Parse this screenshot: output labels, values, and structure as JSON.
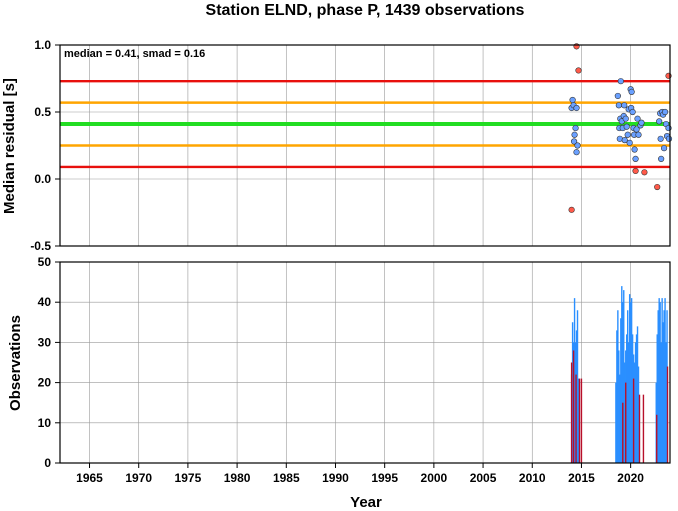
{
  "chart_data": [
    {
      "type": "scatter",
      "title": "Station ELND, phase P, 1439 observations",
      "ylabel": "Median residual [s]",
      "xlim": [
        1962,
        2024
      ],
      "ylim": [
        -0.5,
        1.0
      ],
      "yticks": [
        "1.0",
        "0.5",
        "0.0",
        "-0.5"
      ],
      "grid": true,
      "annotation": "median = 0.41, smad = 0.16",
      "reference_lines": [
        {
          "y": 0.73,
          "color": "#e8100d"
        },
        {
          "y": 0.57,
          "color": "#ffa500"
        },
        {
          "y": 0.41,
          "color": "#22dd22"
        },
        {
          "y": 0.25,
          "color": "#ffa500"
        },
        {
          "y": 0.09,
          "color": "#e8100d"
        }
      ],
      "series": [
        {
          "color": "#6aa0ff",
          "points": [
            [
              2014.0,
              0.53
            ],
            [
              2014.1,
              0.59
            ],
            [
              2014.2,
              0.55
            ],
            [
              2014.25,
              0.28
            ],
            [
              2014.3,
              0.33
            ],
            [
              2014.4,
              0.38
            ],
            [
              2014.5,
              0.53
            ],
            [
              2014.5,
              0.2
            ],
            [
              2014.6,
              0.25
            ],
            [
              2018.7,
              0.62
            ],
            [
              2018.8,
              0.55
            ],
            [
              2018.85,
              0.38
            ],
            [
              2018.9,
              0.3
            ],
            [
              2018.95,
              0.45
            ],
            [
              2019.0,
              0.73
            ],
            [
              2019.1,
              0.43
            ],
            [
              2019.2,
              0.38
            ],
            [
              2019.3,
              0.47
            ],
            [
              2019.35,
              0.55
            ],
            [
              2019.4,
              0.29
            ],
            [
              2019.5,
              0.45
            ],
            [
              2019.6,
              0.39
            ],
            [
              2019.7,
              0.33
            ],
            [
              2019.8,
              0.52
            ],
            [
              2019.9,
              0.27
            ],
            [
              2020.0,
              0.67
            ],
            [
              2020.05,
              0.53
            ],
            [
              2020.1,
              0.65
            ],
            [
              2020.2,
              0.5
            ],
            [
              2020.3,
              0.38
            ],
            [
              2020.35,
              0.33
            ],
            [
              2020.4,
              0.22
            ],
            [
              2020.5,
              0.15
            ],
            [
              2020.6,
              0.37
            ],
            [
              2020.7,
              0.45
            ],
            [
              2020.8,
              0.33
            ],
            [
              2021.0,
              0.4
            ],
            [
              2021.1,
              0.42
            ],
            [
              2022.9,
              0.43
            ],
            [
              2023.0,
              0.49
            ],
            [
              2023.05,
              0.3
            ],
            [
              2023.1,
              0.15
            ],
            [
              2023.2,
              0.5
            ],
            [
              2023.3,
              0.48
            ],
            [
              2023.4,
              0.23
            ],
            [
              2023.5,
              0.5
            ],
            [
              2023.6,
              0.41
            ],
            [
              2023.7,
              0.32
            ],
            [
              2023.85,
              0.38
            ],
            [
              2023.9,
              0.3
            ]
          ]
        },
        {
          "color": "#ff5a4a",
          "points": [
            [
              2014.0,
              -0.23
            ],
            [
              2014.5,
              0.99
            ],
            [
              2014.7,
              0.81
            ],
            [
              2020.5,
              0.06
            ],
            [
              2021.4,
              0.05
            ],
            [
              2022.7,
              -0.06
            ],
            [
              2023.85,
              0.77
            ]
          ]
        }
      ]
    },
    {
      "type": "bar",
      "ylabel": "Observations",
      "xlabel": "Year",
      "xlim": [
        1962,
        2024
      ],
      "ylim": [
        0,
        50
      ],
      "xticks": [
        "1965",
        "1970",
        "1975",
        "1980",
        "1985",
        "1990",
        "1995",
        "2000",
        "2005",
        "2010",
        "2015",
        "2020"
      ],
      "yticks": [
        "0",
        "10",
        "20",
        "30",
        "40",
        "50"
      ],
      "grid": true,
      "series": [
        {
          "color": "#2a8fff",
          "points": [
            [
              2014.0,
              22
            ],
            [
              2014.1,
              35
            ],
            [
              2014.2,
              30
            ],
            [
              2014.3,
              41
            ],
            [
              2014.4,
              30
            ],
            [
              2014.5,
              33
            ],
            [
              2014.6,
              38
            ],
            [
              2014.7,
              21
            ],
            [
              2018.5,
              20
            ],
            [
              2018.6,
              33
            ],
            [
              2018.7,
              38
            ],
            [
              2018.8,
              28
            ],
            [
              2018.9,
              22
            ],
            [
              2019.0,
              36
            ],
            [
              2019.1,
              44
            ],
            [
              2019.2,
              40
            ],
            [
              2019.3,
              43
            ],
            [
              2019.4,
              25
            ],
            [
              2019.5,
              28
            ],
            [
              2019.6,
              32
            ],
            [
              2019.7,
              38
            ],
            [
              2019.8,
              30
            ],
            [
              2019.9,
              42
            ],
            [
              2020.0,
              40
            ],
            [
              2020.1,
              41
            ],
            [
              2020.2,
              32
            ],
            [
              2020.3,
              27
            ],
            [
              2020.4,
              25
            ],
            [
              2020.5,
              30
            ],
            [
              2020.6,
              32
            ],
            [
              2020.7,
              34
            ],
            [
              2020.8,
              24
            ],
            [
              2022.6,
              20
            ],
            [
              2022.7,
              32
            ],
            [
              2022.8,
              38
            ],
            [
              2022.9,
              41
            ],
            [
              2023.0,
              40
            ],
            [
              2023.1,
              30
            ],
            [
              2023.2,
              41
            ],
            [
              2023.3,
              35
            ],
            [
              2023.4,
              38
            ],
            [
              2023.5,
              41
            ],
            [
              2023.6,
              30
            ],
            [
              2023.7,
              38
            ]
          ]
        },
        {
          "color": "#b8102a",
          "points": [
            [
              2014.0,
              25
            ],
            [
              2014.2,
              28
            ],
            [
              2014.45,
              22
            ],
            [
              2014.8,
              21
            ],
            [
              2015.0,
              21
            ],
            [
              2019.2,
              15
            ],
            [
              2019.5,
              20
            ],
            [
              2020.3,
              21
            ],
            [
              2020.9,
              17
            ],
            [
              2021.3,
              17
            ],
            [
              2022.65,
              12
            ],
            [
              2023.75,
              24
            ]
          ]
        }
      ]
    }
  ]
}
